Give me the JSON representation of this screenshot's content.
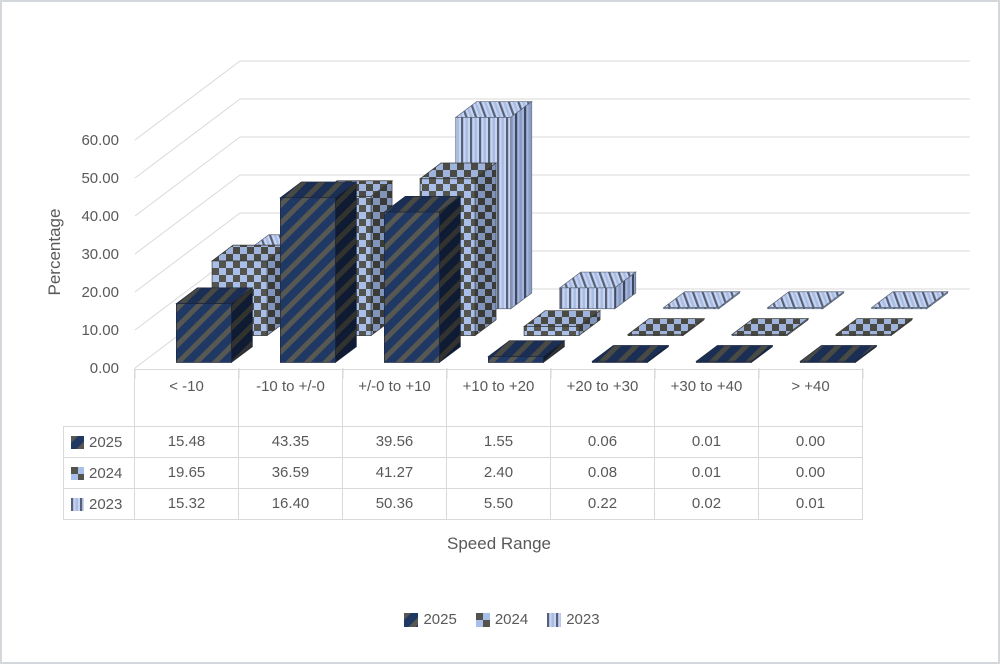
{
  "figure": {
    "kind": "excel-3d-clustered-column-chart-with-data-table"
  },
  "chart_data": {
    "type": "bar",
    "subtype": "3d-clustered-column",
    "title": "",
    "xlabel": "Speed Range",
    "ylabel": "Percentage",
    "ylim": [
      0,
      60
    ],
    "ytick_step": 10,
    "ytick_labels": [
      "0.00",
      "10.00",
      "20.00",
      "30.00",
      "40.00",
      "50.00",
      "60.00"
    ],
    "grid": true,
    "legend_position": "bottom",
    "categories": [
      "< -10",
      "-10 to +/-0",
      "+/-0 to +10",
      "+10 to +20",
      "+20 to +30",
      "+30 to +40",
      "> +40"
    ],
    "series": [
      {
        "name": "2025",
        "pattern": "diagonal-stripe-navy",
        "values": [
          15.48,
          43.35,
          39.56,
          1.55,
          0.06,
          0.01,
          0.0
        ]
      },
      {
        "name": "2024",
        "pattern": "checkerboard-blue-gray",
        "values": [
          19.65,
          36.59,
          41.27,
          2.4,
          0.08,
          0.01,
          0.0
        ]
      },
      {
        "name": "2023",
        "pattern": "vertical-stripe-lightblue",
        "values": [
          15.32,
          16.4,
          50.36,
          5.5,
          0.22,
          0.02,
          0.01
        ]
      }
    ],
    "value_decimals": 2,
    "colors": {
      "text": "#595959",
      "gridline": "#d9d9d9",
      "table_border": "#d9d9d9",
      "series_2025_base": "#203864",
      "series_2025_stripe": "#585852",
      "series_2024_light": "#a9bee8",
      "series_2024_dark": "#54544e",
      "series_2023_base": "#c7d5f2",
      "series_2023_stripe": "#566179"
    }
  }
}
